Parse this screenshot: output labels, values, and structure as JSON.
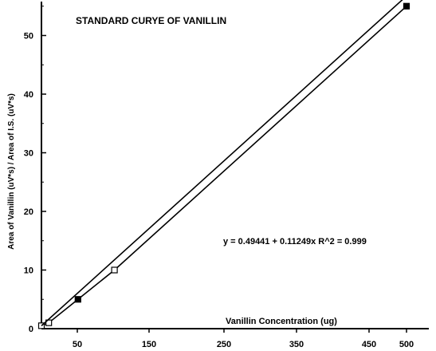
{
  "chart_data": {
    "type": "line",
    "title": "STANDARD CURYE OF VANILLIN",
    "xlabel": "Vanillin Concentration (ug)",
    "ylabel": "Area of Vanillin (uV*s) / Area of I.S. (uV*s)",
    "x_tick_labels": [
      "50",
      "150",
      "250",
      "350",
      "450",
      "500"
    ],
    "y_tick_labels": [
      "0",
      "10",
      "20",
      "30",
      "40",
      "50"
    ],
    "xlim": [
      0,
      500
    ],
    "ylim": [
      0,
      56
    ],
    "grid": false,
    "series": [
      {
        "marker": "square-open",
        "x": [
          0,
          10,
          50,
          100,
          500
        ],
        "y": [
          0.5,
          1.0,
          5.0,
          10.0,
          55.0
        ]
      },
      {
        "marker": "none",
        "fit": "linear",
        "intercept": 0.49441,
        "slope": 0.11249,
        "x": [
          0,
          500
        ],
        "y": [
          0.49441,
          56.74
        ]
      }
    ],
    "annotation": "y = 0.49441 + 0.11249x   R^2 = 0.999"
  },
  "colors": {
    "ink": "#000000",
    "background": "#ffffff"
  }
}
